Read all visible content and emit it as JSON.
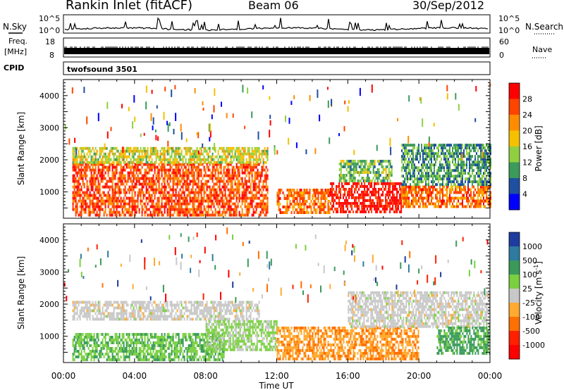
{
  "header": {
    "station": "Rankin Inlet (fitACF)",
    "beam": "Beam 06",
    "date": "30/Sep/2012"
  },
  "noise_panel": {
    "left_label": "N.Sky",
    "left_top_tick": "10^5",
    "left_bottom_tick": "10^0",
    "right_label": "N.Search",
    "right_top_tick": "10^5",
    "right_bottom_tick": "10^0"
  },
  "freq_panel": {
    "left_label_top": "Freq.",
    "left_label_unit": "[MHz]",
    "left_top_tick": "18",
    "left_bottom_tick": "8",
    "right_label": "Nave",
    "right_top_tick": "60",
    "right_bottom_tick": "0"
  },
  "cpid": {
    "label": "CPID",
    "value": "twofsound 3501"
  },
  "chart_data": [
    {
      "type": "heatmap",
      "title": "",
      "quantity": "Power",
      "ylabel": "Slant Range [km]",
      "xlabel": "Time UT",
      "x_ticks": [
        "00:00",
        "04:00",
        "08:00",
        "12:00",
        "16:00",
        "20:00",
        "00:00"
      ],
      "y_ticks": [
        1000,
        2000,
        3000,
        4000
      ],
      "ylim": [
        180,
        4500
      ],
      "colorbar": {
        "label": "Power [dB]",
        "ticks": [
          28,
          24,
          20,
          16,
          12,
          8,
          4
        ],
        "range": [
          0,
          32
        ],
        "colors": [
          "#ff0000",
          "#ff4400",
          "#ff8c00",
          "#f5c000",
          "#90d040",
          "#3c9a5a",
          "#1e4fa0",
          "#0000ff"
        ]
      },
      "regions": [
        {
          "t0": 0.5,
          "t1": 11.5,
          "r0": 300,
          "r1": 1900,
          "value": 26
        },
        {
          "t0": 0.5,
          "t1": 11.5,
          "r0": 1900,
          "r1": 2400,
          "value": 16
        },
        {
          "t0": 12.0,
          "t1": 15.0,
          "r0": 350,
          "r1": 1100,
          "value": 24
        },
        {
          "t0": 15.0,
          "t1": 19.0,
          "r0": 350,
          "r1": 1300,
          "value": 30
        },
        {
          "t0": 15.5,
          "t1": 18.5,
          "r0": 1300,
          "r1": 2000,
          "value": 12
        },
        {
          "t0": 19.0,
          "t1": 24.0,
          "r0": 500,
          "r1": 1200,
          "value": 24
        },
        {
          "t0": 19.0,
          "t1": 24.0,
          "r0": 1200,
          "r1": 2500,
          "value": 10
        }
      ]
    },
    {
      "type": "heatmap",
      "title": "",
      "quantity": "Velocity",
      "ylabel": "Slant Range [km]",
      "xlabel": "Time UT",
      "x_ticks": [
        "00:00",
        "04:00",
        "08:00",
        "12:00",
        "16:00",
        "20:00",
        "00:00"
      ],
      "y_ticks": [
        1000,
        2000,
        3000,
        4000
      ],
      "ylim": [
        180,
        4500
      ],
      "colorbar": {
        "label": "Velocity [m s^-1]",
        "ticks": [
          "1000",
          "500",
          "100",
          "25",
          "-25",
          "-100",
          "-500",
          "-1000"
        ],
        "range": [
          -1000,
          1000
        ],
        "colors": [
          "#1e3ca0",
          "#2e7aa0",
          "#3a9a5a",
          "#7ad040",
          "#c8c8c8",
          "#ffaa30",
          "#ff7000",
          "#ff2000",
          "#ff0000"
        ]
      },
      "regions": [
        {
          "t0": 0.5,
          "t1": 9.0,
          "r0": 300,
          "r1": 1100,
          "value": 300
        },
        {
          "t0": 0.5,
          "t1": 11.0,
          "r0": 1500,
          "r1": 2100,
          "value": 0
        },
        {
          "t0": 8.0,
          "t1": 12.0,
          "r0": 600,
          "r1": 1500,
          "value": 150
        },
        {
          "t0": 12.0,
          "t1": 20.0,
          "r0": 300,
          "r1": 1300,
          "value": -300
        },
        {
          "t0": 16.0,
          "t1": 24.0,
          "r0": 1300,
          "r1": 2400,
          "value": 0
        },
        {
          "t0": 21.0,
          "t1": 24.0,
          "r0": 500,
          "r1": 1300,
          "value": 400
        }
      ]
    }
  ],
  "axis": {
    "x_label": "Time UT",
    "y_label": "Slant Range [km]",
    "velocity_unit_base": "Velocity [m s",
    "velocity_unit_exp": "-1",
    "velocity_unit_close": "]"
  }
}
